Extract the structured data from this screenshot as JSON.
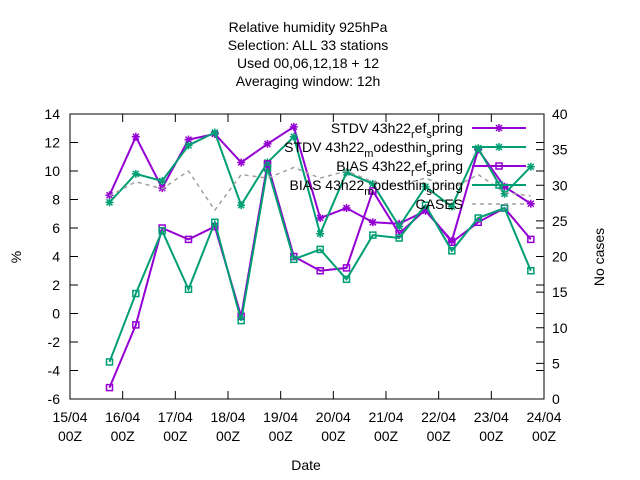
{
  "chart_data": {
    "type": "line",
    "title_lines": [
      "Relative humidity 925hPa",
      "Selection: ALL      33 stations",
      "Used  00,06,12,18  + 12",
      "Averaging window: 12h"
    ],
    "xlabel": "Date",
    "ylabel": "%",
    "y2label": "No cases",
    "ylim": [
      -6,
      14
    ],
    "y2lim": [
      0,
      40
    ],
    "yticks": [
      "-6",
      "-4",
      "-2",
      "0",
      "2",
      "4",
      "6",
      "8",
      "10",
      "12",
      "14"
    ],
    "y2ticks": [
      "0",
      "5",
      "10",
      "15",
      "20",
      "25",
      "30",
      "35",
      "40"
    ],
    "xlim": [
      "15/04 00Z",
      "24/04 00Z"
    ],
    "xticks": [
      [
        "15/04",
        "00Z"
      ],
      [
        "16/04",
        "00Z"
      ],
      [
        "17/04",
        "00Z"
      ],
      [
        "18/04",
        "00Z"
      ],
      [
        "19/04",
        "00Z"
      ],
      [
        "20/04",
        "00Z"
      ],
      [
        "21/04",
        "00Z"
      ],
      [
        "22/04",
        "00Z"
      ],
      [
        "23/04",
        "00Z"
      ],
      [
        "24/04",
        "00Z"
      ]
    ],
    "x": [
      "15/04 18Z",
      "16/04 06Z",
      "16/04 18Z",
      "17/04 06Z",
      "17/04 18Z",
      "18/04 06Z",
      "18/04 18Z",
      "19/04 06Z",
      "19/04 18Z",
      "20/04 06Z",
      "20/04 18Z",
      "21/04 06Z",
      "21/04 18Z",
      "22/04 06Z",
      "22/04 18Z",
      "23/04 06Z",
      "23/04 18Z"
    ],
    "legend_position": "top-right",
    "series": [
      {
        "name": "STDV 43h22_ref_spring",
        "axis": "y",
        "color": "#9400d3",
        "marker": "star",
        "values": [
          8.3,
          12.4,
          8.8,
          12.2,
          12.6,
          10.6,
          11.9,
          13.1,
          6.7,
          7.4,
          6.4,
          6.3,
          7.2,
          5.1,
          11.5,
          8.9,
          7.7
        ]
      },
      {
        "name": "STDV 43h22_modesthin_spring",
        "axis": "y",
        "color": "#009e73",
        "marker": "star",
        "values": [
          7.8,
          9.8,
          9.3,
          11.8,
          12.7,
          7.6,
          10.6,
          12.4,
          5.6,
          9.9,
          9.1,
          6.1,
          8.9,
          7.5,
          11.6,
          8.4,
          10.3
        ]
      },
      {
        "name": "BIAS 43h22_ref_spring",
        "axis": "y",
        "color": "#9400d3",
        "marker": "square",
        "values": [
          -5.2,
          -0.8,
          6.0,
          5.2,
          6.1,
          -0.2,
          10.5,
          4.0,
          3.0,
          3.2,
          8.6,
          5.6,
          7.3,
          5.0,
          6.4,
          7.4,
          5.2
        ]
      },
      {
        "name": "BIAS 43h22_modesthin_spring",
        "axis": "y",
        "color": "#009e73",
        "marker": "square",
        "values": [
          -3.4,
          1.4,
          5.8,
          1.7,
          6.4,
          -0.5,
          10.2,
          3.8,
          4.5,
          2.4,
          5.5,
          5.3,
          7.6,
          4.4,
          6.7,
          7.4,
          3.0
        ]
      },
      {
        "name": "CASES",
        "axis": "y2",
        "color": "#a0a0a0",
        "marker": "none",
        "dashed": true,
        "values": [
          28.5,
          30.5,
          29.5,
          32.0,
          26.5,
          31.5,
          31.0,
          32.5,
          31.0,
          32.0,
          30.5,
          30.0,
          31.0,
          29.5,
          31.5,
          29.0,
          28.5
        ]
      }
    ],
    "grid": false
  }
}
